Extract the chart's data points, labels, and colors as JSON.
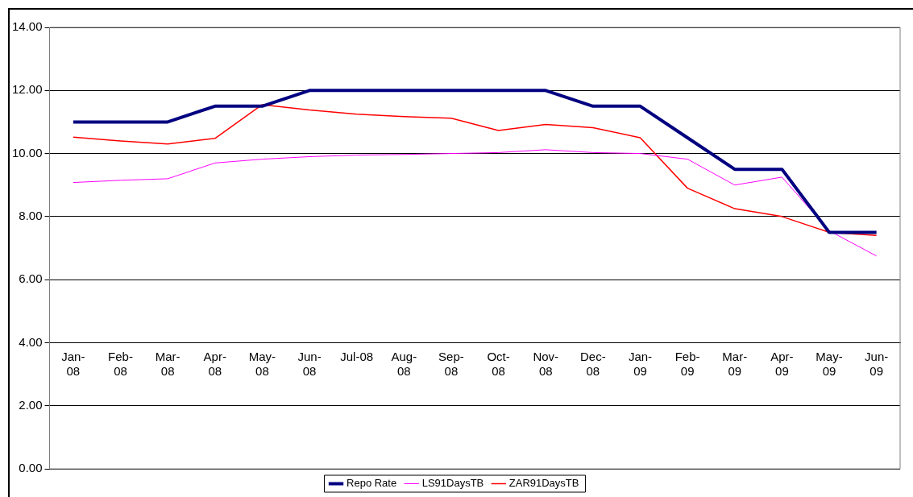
{
  "chart_data": {
    "type": "line",
    "categories": [
      "Jan-08",
      "Feb-08",
      "Mar-08",
      "Apr-08",
      "May-08",
      "Jun-08",
      "Jul-08",
      "Aug-08",
      "Sep-08",
      "Oct-08",
      "Nov-08",
      "Dec-08",
      "Jan-09",
      "Feb-09",
      "Mar-09",
      "Apr-09",
      "May-09",
      "Jun-09"
    ],
    "series": [
      {
        "name": "Repo Rate",
        "color": "#000080",
        "values": [
          11,
          11,
          11,
          11.5,
          11.5,
          12,
          12,
          12,
          12,
          12,
          12,
          11.5,
          11.5,
          10.5,
          9.5,
          9.5,
          7.5,
          7.5
        ]
      },
      {
        "name": "LS91DaysTB",
        "color": "#ff00ff",
        "values": [
          9.08,
          9.15,
          9.2,
          9.7,
          9.82,
          9.9,
          9.95,
          9.97,
          10.0,
          10.03,
          10.12,
          10.03,
          10.0,
          9.82,
          9.0,
          9.25,
          7.55,
          6.75
        ]
      },
      {
        "name": "ZAR91DaysTB",
        "color": "#ff0000",
        "values": [
          10.52,
          10.4,
          10.3,
          10.48,
          11.55,
          11.38,
          11.25,
          11.17,
          11.12,
          10.73,
          10.92,
          10.82,
          10.5,
          8.9,
          8.25,
          8.0,
          7.5,
          7.4
        ]
      }
    ],
    "ylim": [
      0,
      14
    ],
    "yticks": [
      {
        "value": 0,
        "label": "0.00"
      },
      {
        "value": 2,
        "label": "2.00"
      },
      {
        "value": 4,
        "label": "4.00"
      },
      {
        "value": 6,
        "label": "6.00"
      },
      {
        "value": 8,
        "label": "8.00"
      },
      {
        "value": 10,
        "label": "10.00"
      },
      {
        "value": 12,
        "label": "12.00"
      },
      {
        "value": 14,
        "label": "14.00"
      }
    ],
    "grid": "y",
    "legend": "bottom",
    "marker": "none",
    "line_style": "solid"
  }
}
